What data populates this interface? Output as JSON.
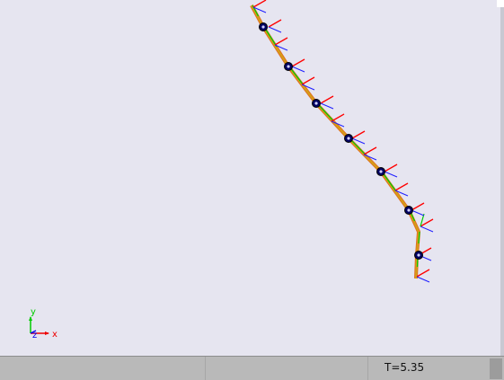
{
  "status": {
    "time_label": "T=5.35"
  },
  "axes_triad": {
    "x_label": "x",
    "y_label": "y",
    "z_label": "z",
    "x_color": "#ee0000",
    "y_color": "#00cc00",
    "z_color": "#0000ee"
  },
  "beam": {
    "nodes": 8,
    "element_color": "#d4a017",
    "edge_color": "#e07020",
    "node_marker_color": "#000060",
    "frame_colors": {
      "x": "#ff0000",
      "y": "#00cc00",
      "z": "#1f1fff"
    }
  }
}
